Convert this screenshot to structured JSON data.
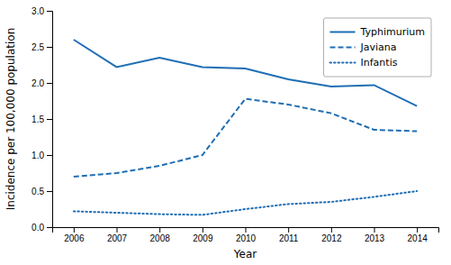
{
  "chart_data": {
    "type": "line",
    "xlabel": "Year",
    "ylabel": "Incidence per 100,000 population",
    "x": [
      2006,
      2007,
      2008,
      2009,
      2010,
      2011,
      2012,
      2013,
      2014
    ],
    "series": [
      {
        "name": "Typhimurium",
        "color": "#1f6eb5",
        "line_style": "solid",
        "values": [
          2.6,
          2.22,
          2.35,
          2.22,
          2.2,
          2.05,
          1.95,
          1.97,
          1.68
        ]
      },
      {
        "name": "Javiana",
        "color": "#1f6eb5",
        "line_style": "dashed",
        "values": [
          0.7,
          0.75,
          0.85,
          1.0,
          1.78,
          1.7,
          1.58,
          1.35,
          1.33
        ]
      },
      {
        "name": "Infantis",
        "color": "#1f6eb5",
        "line_style": "dotted",
        "values": [
          0.22,
          0.2,
          0.18,
          0.17,
          0.25,
          0.32,
          0.35,
          0.42,
          0.5
        ]
      }
    ],
    "xlim": [
      2005.5,
      2014.5
    ],
    "xticks": [
      2006,
      2007,
      2008,
      2009,
      2010,
      2011,
      2012,
      2013,
      2014
    ],
    "ylim": [
      0,
      3.0
    ],
    "yticks": [
      {
        "value": 0,
        "label": "0.0"
      },
      0.5,
      {
        "value": 1.0,
        "label": "1.0"
      },
      1.5,
      {
        "value": 2.0,
        "label": "2.0"
      },
      2.5,
      {
        "value": 3.0,
        "label": "3.0"
      }
    ],
    "grid": false,
    "legend": "upper right"
  }
}
